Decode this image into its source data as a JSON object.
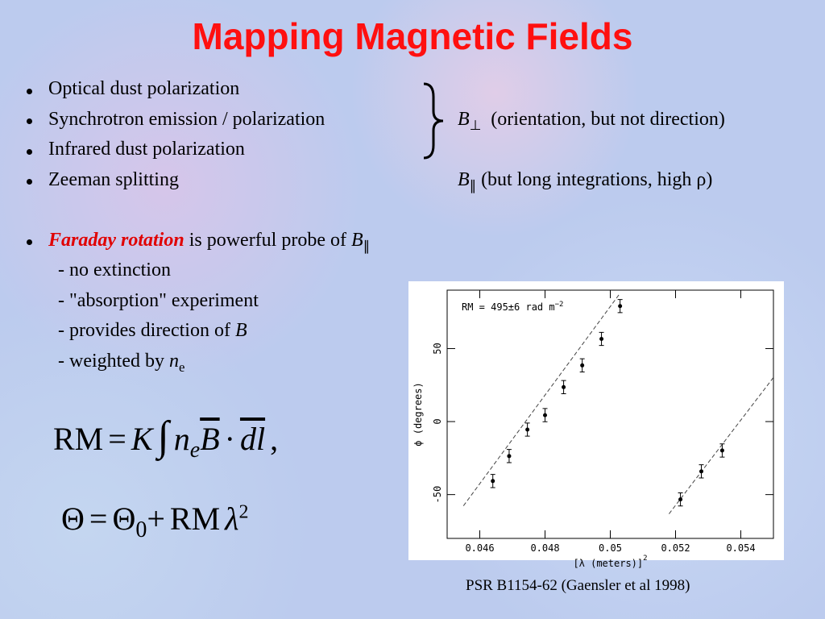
{
  "title": "Mapping Magnetic Fields",
  "bullets": [
    "Optical dust polarization",
    "Synchrotron emission / polarization",
    "Infrared dust polarization",
    "Zeeman splitting"
  ],
  "perp_note": {
    "symbol": "B",
    "sub": "⊥",
    "text": "(orientation, but not direction)"
  },
  "par_note": {
    "symbol": "B",
    "sub": "∥",
    "text": "(but long integrations, high ρ)"
  },
  "faraday": {
    "emph": "Faraday rotation",
    "text": " is powerful probe of ",
    "symbol": "B",
    "sub": "∥"
  },
  "subitems": [
    {
      "text": "- no extinction"
    },
    {
      "text": "- \"absorption\" experiment"
    },
    {
      "text": "- provides direction of ",
      "symbol": "B"
    },
    {
      "text": "- weighted by ",
      "symbol": "n",
      "sub": "e"
    }
  ],
  "equation1": [
    "RM",
    "=",
    "K",
    "∫",
    "n",
    "e",
    "B",
    "·",
    "dl",
    ","
  ],
  "equation2": [
    "Θ",
    "=",
    "Θ",
    "0",
    "+",
    "RM",
    "λ",
    "2"
  ],
  "caption": "PSR B1154-62 (Gaensler et al 1998)",
  "chart_data": {
    "type": "scatter",
    "annotation": "RM = 495±6 rad m",
    "annotation_sup": "−2",
    "x_label": "[λ (meters)]",
    "x_label_sup": "2",
    "y_label": "ϕ (degrees)",
    "x": [
      0.0464,
      0.0469,
      0.04746,
      0.048,
      0.04857,
      0.04914,
      0.04973,
      0.0503,
      0.05215,
      0.05279,
      0.05343
    ],
    "y": [
      -40.7,
      -23.6,
      -5.5,
      4.4,
      23.6,
      38.5,
      56.6,
      79.1,
      -53.3,
      -34.1,
      -19.8
    ],
    "errors": [
      4.5,
      4.5,
      4.5,
      4.5,
      4.5,
      4.5,
      4.5,
      4.5,
      4.5,
      4.5,
      4.5
    ],
    "fit_lines": [
      {
        "x": [
          0.0455,
          0.0503
        ],
        "y": [
          -57.7,
          87.9
        ]
      },
      {
        "x": [
          0.0518,
          0.055
        ],
        "y": [
          -63.2,
          30.2
        ]
      }
    ],
    "color": "#000000",
    "xlim": [
      0.045,
      0.055
    ],
    "ylim": [
      -80,
      90
    ],
    "xticks": [
      0.046,
      0.048,
      0.05,
      0.052,
      0.054
    ],
    "yticks": [
      -50,
      0,
      50
    ]
  }
}
